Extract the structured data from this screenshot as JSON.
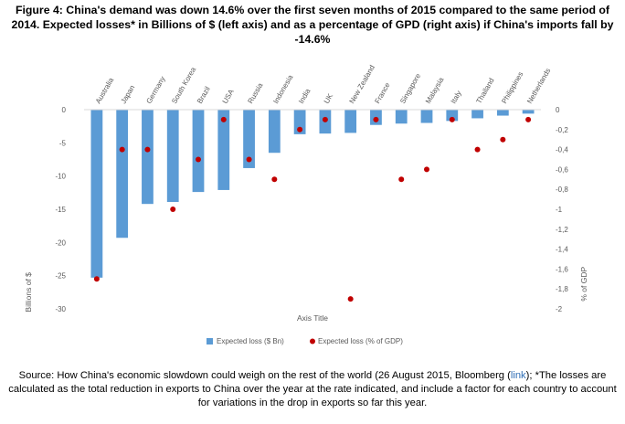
{
  "title": "Figure 4: China's demand was down 14.6% over the first seven months of 2015 compared to the same period of 2014. Expected losses* in Billions of $ (left axis) and as a percentage of GPD (right axis) if China's imports fall by -14.6%",
  "source": {
    "before": "Source: How China's economic slowdown could weigh on the rest of the world (26 August 2015, Bloomberg (",
    "link": "link",
    "after": "); *The losses are calculated as the total reduction in exports to China over the year at the rate indicated, and include a factor for each country to account for variations in the drop in exports so far this year."
  },
  "colors": {
    "bar": "#5b9bd5",
    "dot": "#c00000",
    "text": "#595959",
    "axis": "#d9d9d9"
  },
  "chart_data": {
    "type": "bar",
    "title": "",
    "xlabel": "Axis Title",
    "ylabel": "Billions of $",
    "y2label": "% of GDP",
    "categories": [
      "Australia",
      "Japan",
      "Germany",
      "South Korea",
      "Brazil",
      "USA",
      "Russia",
      "Indonesia",
      "India",
      "UK",
      "New Zealand",
      "France",
      "Singapore",
      "Malaysia",
      "Italy",
      "Thailand",
      "Philippines",
      "Netherlands"
    ],
    "ylim": [
      -30,
      0
    ],
    "yticks": [
      0,
      -5,
      -10,
      -15,
      -20,
      -25,
      -30
    ],
    "ytick_labels": [
      "0",
      "-5",
      "-10",
      "-15",
      "-20",
      "-25",
      "-30"
    ],
    "y2lim": [
      -2,
      0
    ],
    "y2ticks": [
      0,
      -0.2,
      -0.4,
      -0.6,
      -0.8,
      -1,
      -1.2,
      -1.4,
      -1.6,
      -1.8,
      -2
    ],
    "y2tick_labels": [
      "0",
      "-0,2",
      "-0,4",
      "-0,6",
      "-0,8",
      "-1",
      "-1,2",
      "-1,4",
      "-1,6",
      "-1,8",
      "-2"
    ],
    "series": [
      {
        "name": "Expected loss ($ Bn)",
        "type": "bar",
        "axis": "left",
        "values": [
          -25.3,
          -19.3,
          -14.2,
          -13.9,
          -12.4,
          -12.1,
          -8.8,
          -6.5,
          -3.7,
          -3.6,
          -3.5,
          -2.3,
          -2.1,
          -2.0,
          -1.7,
          -1.3,
          -0.9,
          -0.6
        ]
      },
      {
        "name": "Expected loss (% of GDP)",
        "type": "scatter",
        "axis": "right",
        "values": [
          -1.7,
          -0.4,
          -0.4,
          -1.0,
          -0.5,
          -0.1,
          -0.5,
          -0.7,
          -0.2,
          -0.1,
          -1.9,
          -0.1,
          -0.7,
          -0.6,
          -0.1,
          -0.4,
          -0.3,
          -0.1
        ]
      }
    ],
    "legend_position": "bottom"
  }
}
